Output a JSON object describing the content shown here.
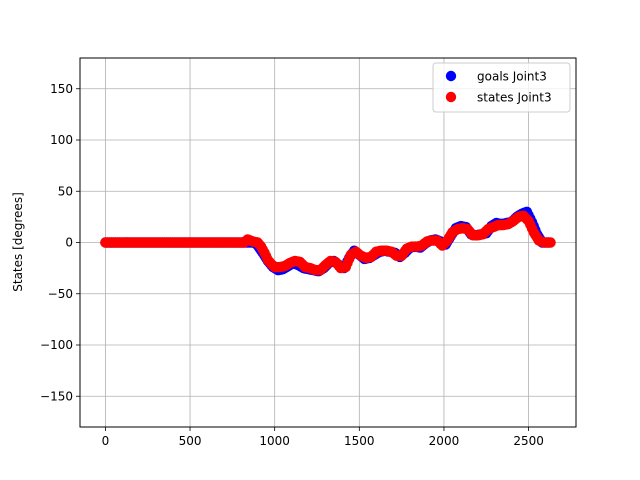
{
  "chart_data": {
    "type": "scatter",
    "title": "",
    "xlabel": "",
    "ylabel": "States [degrees]",
    "xlim": [
      -150,
      2780
    ],
    "ylim": [
      -180,
      180
    ],
    "x_ticks": [
      0,
      500,
      1000,
      1500,
      2000,
      2500
    ],
    "y_ticks": [
      -150,
      -100,
      -50,
      0,
      50,
      100,
      150
    ],
    "grid": true,
    "legend_position": "top-right",
    "series": [
      {
        "name": "goals Joint3",
        "color": "#0000ff",
        "points": [
          [
            0,
            0
          ],
          [
            840,
            0
          ],
          [
            880,
            0
          ],
          [
            900,
            -3
          ],
          [
            930,
            -10
          ],
          [
            960,
            -18
          ],
          [
            990,
            -24
          ],
          [
            1020,
            -27
          ],
          [
            1050,
            -26
          ],
          [
            1080,
            -23
          ],
          [
            1110,
            -20
          ],
          [
            1140,
            -22
          ],
          [
            1170,
            -25
          ],
          [
            1200,
            -26
          ],
          [
            1230,
            -27
          ],
          [
            1260,
            -28
          ],
          [
            1290,
            -25
          ],
          [
            1320,
            -20
          ],
          [
            1350,
            -18
          ],
          [
            1380,
            -22
          ],
          [
            1410,
            -25
          ],
          [
            1440,
            -15
          ],
          [
            1470,
            -8
          ],
          [
            1500,
            -12
          ],
          [
            1530,
            -16
          ],
          [
            1560,
            -15
          ],
          [
            1590,
            -12
          ],
          [
            1620,
            -9
          ],
          [
            1650,
            -8
          ],
          [
            1680,
            -9
          ],
          [
            1710,
            -10
          ],
          [
            1740,
            -14
          ],
          [
            1770,
            -10
          ],
          [
            1800,
            -5
          ],
          [
            1830,
            -4
          ],
          [
            1860,
            -5
          ],
          [
            1890,
            -1
          ],
          [
            1920,
            2
          ],
          [
            1950,
            3
          ],
          [
            1980,
            1
          ],
          [
            2010,
            -2
          ],
          [
            2040,
            6
          ],
          [
            2070,
            14
          ],
          [
            2100,
            16
          ],
          [
            2130,
            15
          ],
          [
            2160,
            8
          ],
          [
            2190,
            7
          ],
          [
            2220,
            8
          ],
          [
            2250,
            9
          ],
          [
            2280,
            16
          ],
          [
            2310,
            19
          ],
          [
            2340,
            18
          ],
          [
            2370,
            19
          ],
          [
            2400,
            20
          ],
          [
            2430,
            25
          ],
          [
            2460,
            28
          ],
          [
            2490,
            30
          ],
          [
            2520,
            20
          ],
          [
            2550,
            8
          ],
          [
            2580,
            0
          ],
          [
            2620,
            0
          ]
        ]
      },
      {
        "name": "states Joint3",
        "color": "#ff0000",
        "points": [
          [
            0,
            0
          ],
          [
            820,
            0
          ],
          [
            840,
            3
          ],
          [
            870,
            1
          ],
          [
            900,
            0
          ],
          [
            920,
            -4
          ],
          [
            940,
            -10
          ],
          [
            960,
            -17
          ],
          [
            980,
            -21
          ],
          [
            1000,
            -24
          ],
          [
            1030,
            -24
          ],
          [
            1060,
            -23
          ],
          [
            1090,
            -20
          ],
          [
            1120,
            -18
          ],
          [
            1150,
            -19
          ],
          [
            1180,
            -24
          ],
          [
            1210,
            -25
          ],
          [
            1240,
            -27
          ],
          [
            1270,
            -27
          ],
          [
            1300,
            -22
          ],
          [
            1330,
            -18
          ],
          [
            1360,
            -19
          ],
          [
            1390,
            -25
          ],
          [
            1420,
            -24
          ],
          [
            1450,
            -12
          ],
          [
            1480,
            -9
          ],
          [
            1510,
            -13
          ],
          [
            1540,
            -15
          ],
          [
            1570,
            -14
          ],
          [
            1600,
            -9
          ],
          [
            1630,
            -8
          ],
          [
            1660,
            -8
          ],
          [
            1690,
            -9
          ],
          [
            1720,
            -13
          ],
          [
            1750,
            -13
          ],
          [
            1780,
            -6
          ],
          [
            1810,
            -4
          ],
          [
            1840,
            -4
          ],
          [
            1870,
            -3
          ],
          [
            1900,
            1
          ],
          [
            1930,
            2
          ],
          [
            1960,
            2
          ],
          [
            1990,
            -3
          ],
          [
            2020,
            2
          ],
          [
            2050,
            10
          ],
          [
            2080,
            13
          ],
          [
            2110,
            14
          ],
          [
            2140,
            13
          ],
          [
            2170,
            7
          ],
          [
            2200,
            7
          ],
          [
            2230,
            8
          ],
          [
            2260,
            13
          ],
          [
            2290,
            15
          ],
          [
            2320,
            17
          ],
          [
            2350,
            17
          ],
          [
            2380,
            18
          ],
          [
            2410,
            21
          ],
          [
            2440,
            25
          ],
          [
            2470,
            26
          ],
          [
            2500,
            21
          ],
          [
            2530,
            10
          ],
          [
            2560,
            2
          ],
          [
            2590,
            0
          ],
          [
            2630,
            0
          ]
        ]
      }
    ]
  }
}
